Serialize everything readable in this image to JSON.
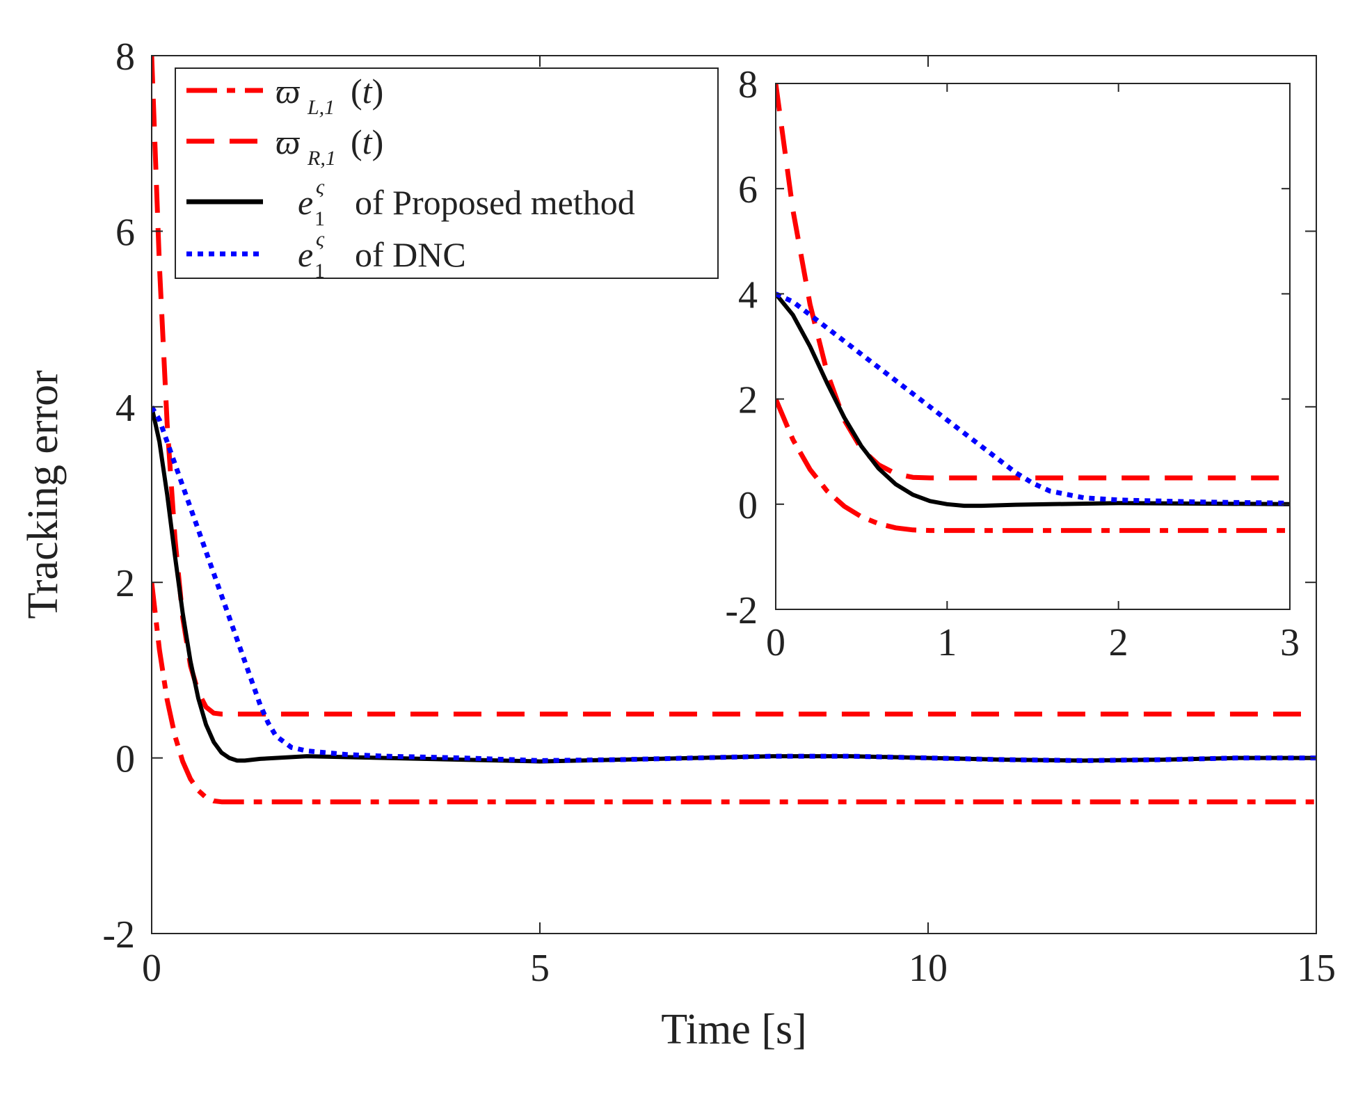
{
  "chart_data": [
    {
      "type": "line",
      "xlabel": "Time [s]",
      "ylabel": "Tracking error",
      "xlim": [
        0,
        15
      ],
      "ylim": [
        -2,
        8
      ],
      "xticks": [
        "0",
        "5",
        "10",
        "15"
      ],
      "yticks": [
        "-2",
        "0",
        "2",
        "4",
        "6",
        "8"
      ],
      "grid": false,
      "legend": "top-left",
      "series": [
        {
          "name": "ϖ_{L,1}(t)",
          "color": "#ff0000",
          "dash": "dash-dot",
          "x": [
            0,
            0.1,
            0.2,
            0.3,
            0.4,
            0.5,
            0.6,
            0.7,
            0.8,
            0.9,
            1.0,
            2,
            5,
            10,
            15
          ],
          "y": [
            2.0,
            1.23,
            0.66,
            0.25,
            -0.04,
            -0.24,
            -0.37,
            -0.45,
            -0.49,
            -0.5,
            -0.5,
            -0.5,
            -0.5,
            -0.5,
            -0.5
          ]
        },
        {
          "name": "ϖ_{R,1}(t)",
          "color": "#ff0000",
          "dash": "dash",
          "x": [
            0,
            0.1,
            0.2,
            0.3,
            0.4,
            0.5,
            0.6,
            0.7,
            0.8,
            0.9,
            1.0,
            2,
            5,
            10,
            15
          ],
          "y": [
            8.0,
            5.6,
            3.8,
            2.5,
            1.6,
            1.05,
            0.75,
            0.58,
            0.51,
            0.5,
            0.5,
            0.5,
            0.5,
            0.5,
            0.5
          ]
        },
        {
          "name": "e_1^ς of Proposed method",
          "color": "#000000",
          "dash": "solid",
          "x": [
            0,
            0.1,
            0.2,
            0.3,
            0.4,
            0.5,
            0.6,
            0.7,
            0.8,
            0.9,
            1.0,
            1.1,
            1.2,
            1.4,
            1.6,
            2.0,
            3.0,
            4.0,
            5.0,
            6.0,
            7.0,
            8.0,
            9.0,
            10.0,
            11.0,
            12.0,
            13.0,
            14.0,
            15.0
          ],
          "y": [
            4.0,
            3.6,
            3.0,
            2.3,
            1.65,
            1.1,
            0.68,
            0.38,
            0.18,
            0.06,
            0.0,
            -0.03,
            -0.03,
            -0.01,
            0.0,
            0.02,
            0.0,
            -0.02,
            -0.04,
            -0.02,
            0.0,
            0.02,
            0.02,
            0.0,
            -0.02,
            -0.03,
            -0.02,
            0.0,
            0.0
          ]
        },
        {
          "name": "e_1^ς of DNC",
          "color": "#0000ff",
          "dash": "dot",
          "x": [
            0,
            0.1,
            0.2,
            0.4,
            0.6,
            0.8,
            1.0,
            1.2,
            1.4,
            1.5,
            1.6,
            1.8,
            2.0,
            2.5,
            3.0,
            4.0,
            5.0,
            6.0,
            7.0,
            8.0,
            9.0,
            10.0,
            11.0,
            12.0,
            13.0,
            14.0,
            15.0
          ],
          "y": [
            4.0,
            3.85,
            3.6,
            3.1,
            2.6,
            2.1,
            1.6,
            1.1,
            0.6,
            0.4,
            0.25,
            0.12,
            0.08,
            0.04,
            0.02,
            0.0,
            -0.03,
            -0.02,
            0.0,
            0.02,
            0.02,
            0.0,
            -0.02,
            -0.03,
            -0.02,
            0.0,
            0.0
          ]
        }
      ]
    },
    {
      "type": "line",
      "xlim": [
        0,
        3
      ],
      "ylim": [
        -2,
        8
      ],
      "xticks": [
        "0",
        "1",
        "2",
        "3"
      ],
      "yticks": [
        "-2",
        "0",
        "2",
        "4",
        "6",
        "8"
      ],
      "grid": false,
      "series": [
        {
          "color": "#ff0000",
          "dash": "dash-dot",
          "x": [
            0,
            0.1,
            0.2,
            0.3,
            0.4,
            0.5,
            0.6,
            0.7,
            0.8,
            0.9,
            1.0,
            3.0
          ],
          "y": [
            2.0,
            1.23,
            0.66,
            0.25,
            -0.04,
            -0.24,
            -0.37,
            -0.45,
            -0.49,
            -0.5,
            -0.5,
            -0.5
          ]
        },
        {
          "color": "#ff0000",
          "dash": "dash",
          "x": [
            0,
            0.1,
            0.2,
            0.3,
            0.4,
            0.5,
            0.6,
            0.7,
            0.8,
            0.9,
            1.0,
            3.0
          ],
          "y": [
            8.0,
            5.6,
            3.8,
            2.5,
            1.6,
            1.05,
            0.75,
            0.58,
            0.51,
            0.5,
            0.5,
            0.5
          ]
        },
        {
          "color": "#000000",
          "dash": "solid",
          "x": [
            0,
            0.1,
            0.2,
            0.3,
            0.4,
            0.5,
            0.6,
            0.7,
            0.8,
            0.9,
            1.0,
            1.1,
            1.2,
            1.4,
            1.6,
            2.0,
            2.5,
            3.0
          ],
          "y": [
            4.0,
            3.6,
            3.0,
            2.3,
            1.65,
            1.1,
            0.68,
            0.38,
            0.18,
            0.06,
            0.0,
            -0.03,
            -0.03,
            -0.01,
            0.0,
            0.02,
            0.01,
            0.0
          ]
        },
        {
          "color": "#0000ff",
          "dash": "dot",
          "x": [
            0,
            0.1,
            0.2,
            0.4,
            0.6,
            0.8,
            1.0,
            1.2,
            1.4,
            1.5,
            1.6,
            1.8,
            2.0,
            2.5,
            3.0
          ],
          "y": [
            4.0,
            3.85,
            3.6,
            3.1,
            2.6,
            2.1,
            1.6,
            1.1,
            0.6,
            0.4,
            0.25,
            0.12,
            0.08,
            0.04,
            0.02
          ]
        }
      ]
    }
  ],
  "legend": {
    "entries": [
      {
        "symbol": "ϖ",
        "sub": "L,1",
        "suffix": "(t)",
        "text": ""
      },
      {
        "symbol": "ϖ",
        "sub": "R,1",
        "suffix": "(t)",
        "text": ""
      },
      {
        "symbol": "e",
        "sub": "1",
        "sup": "ς",
        "text": "of Proposed method"
      },
      {
        "symbol": "e",
        "sub": "1",
        "sup": "ς",
        "text": "of DNC"
      }
    ]
  }
}
